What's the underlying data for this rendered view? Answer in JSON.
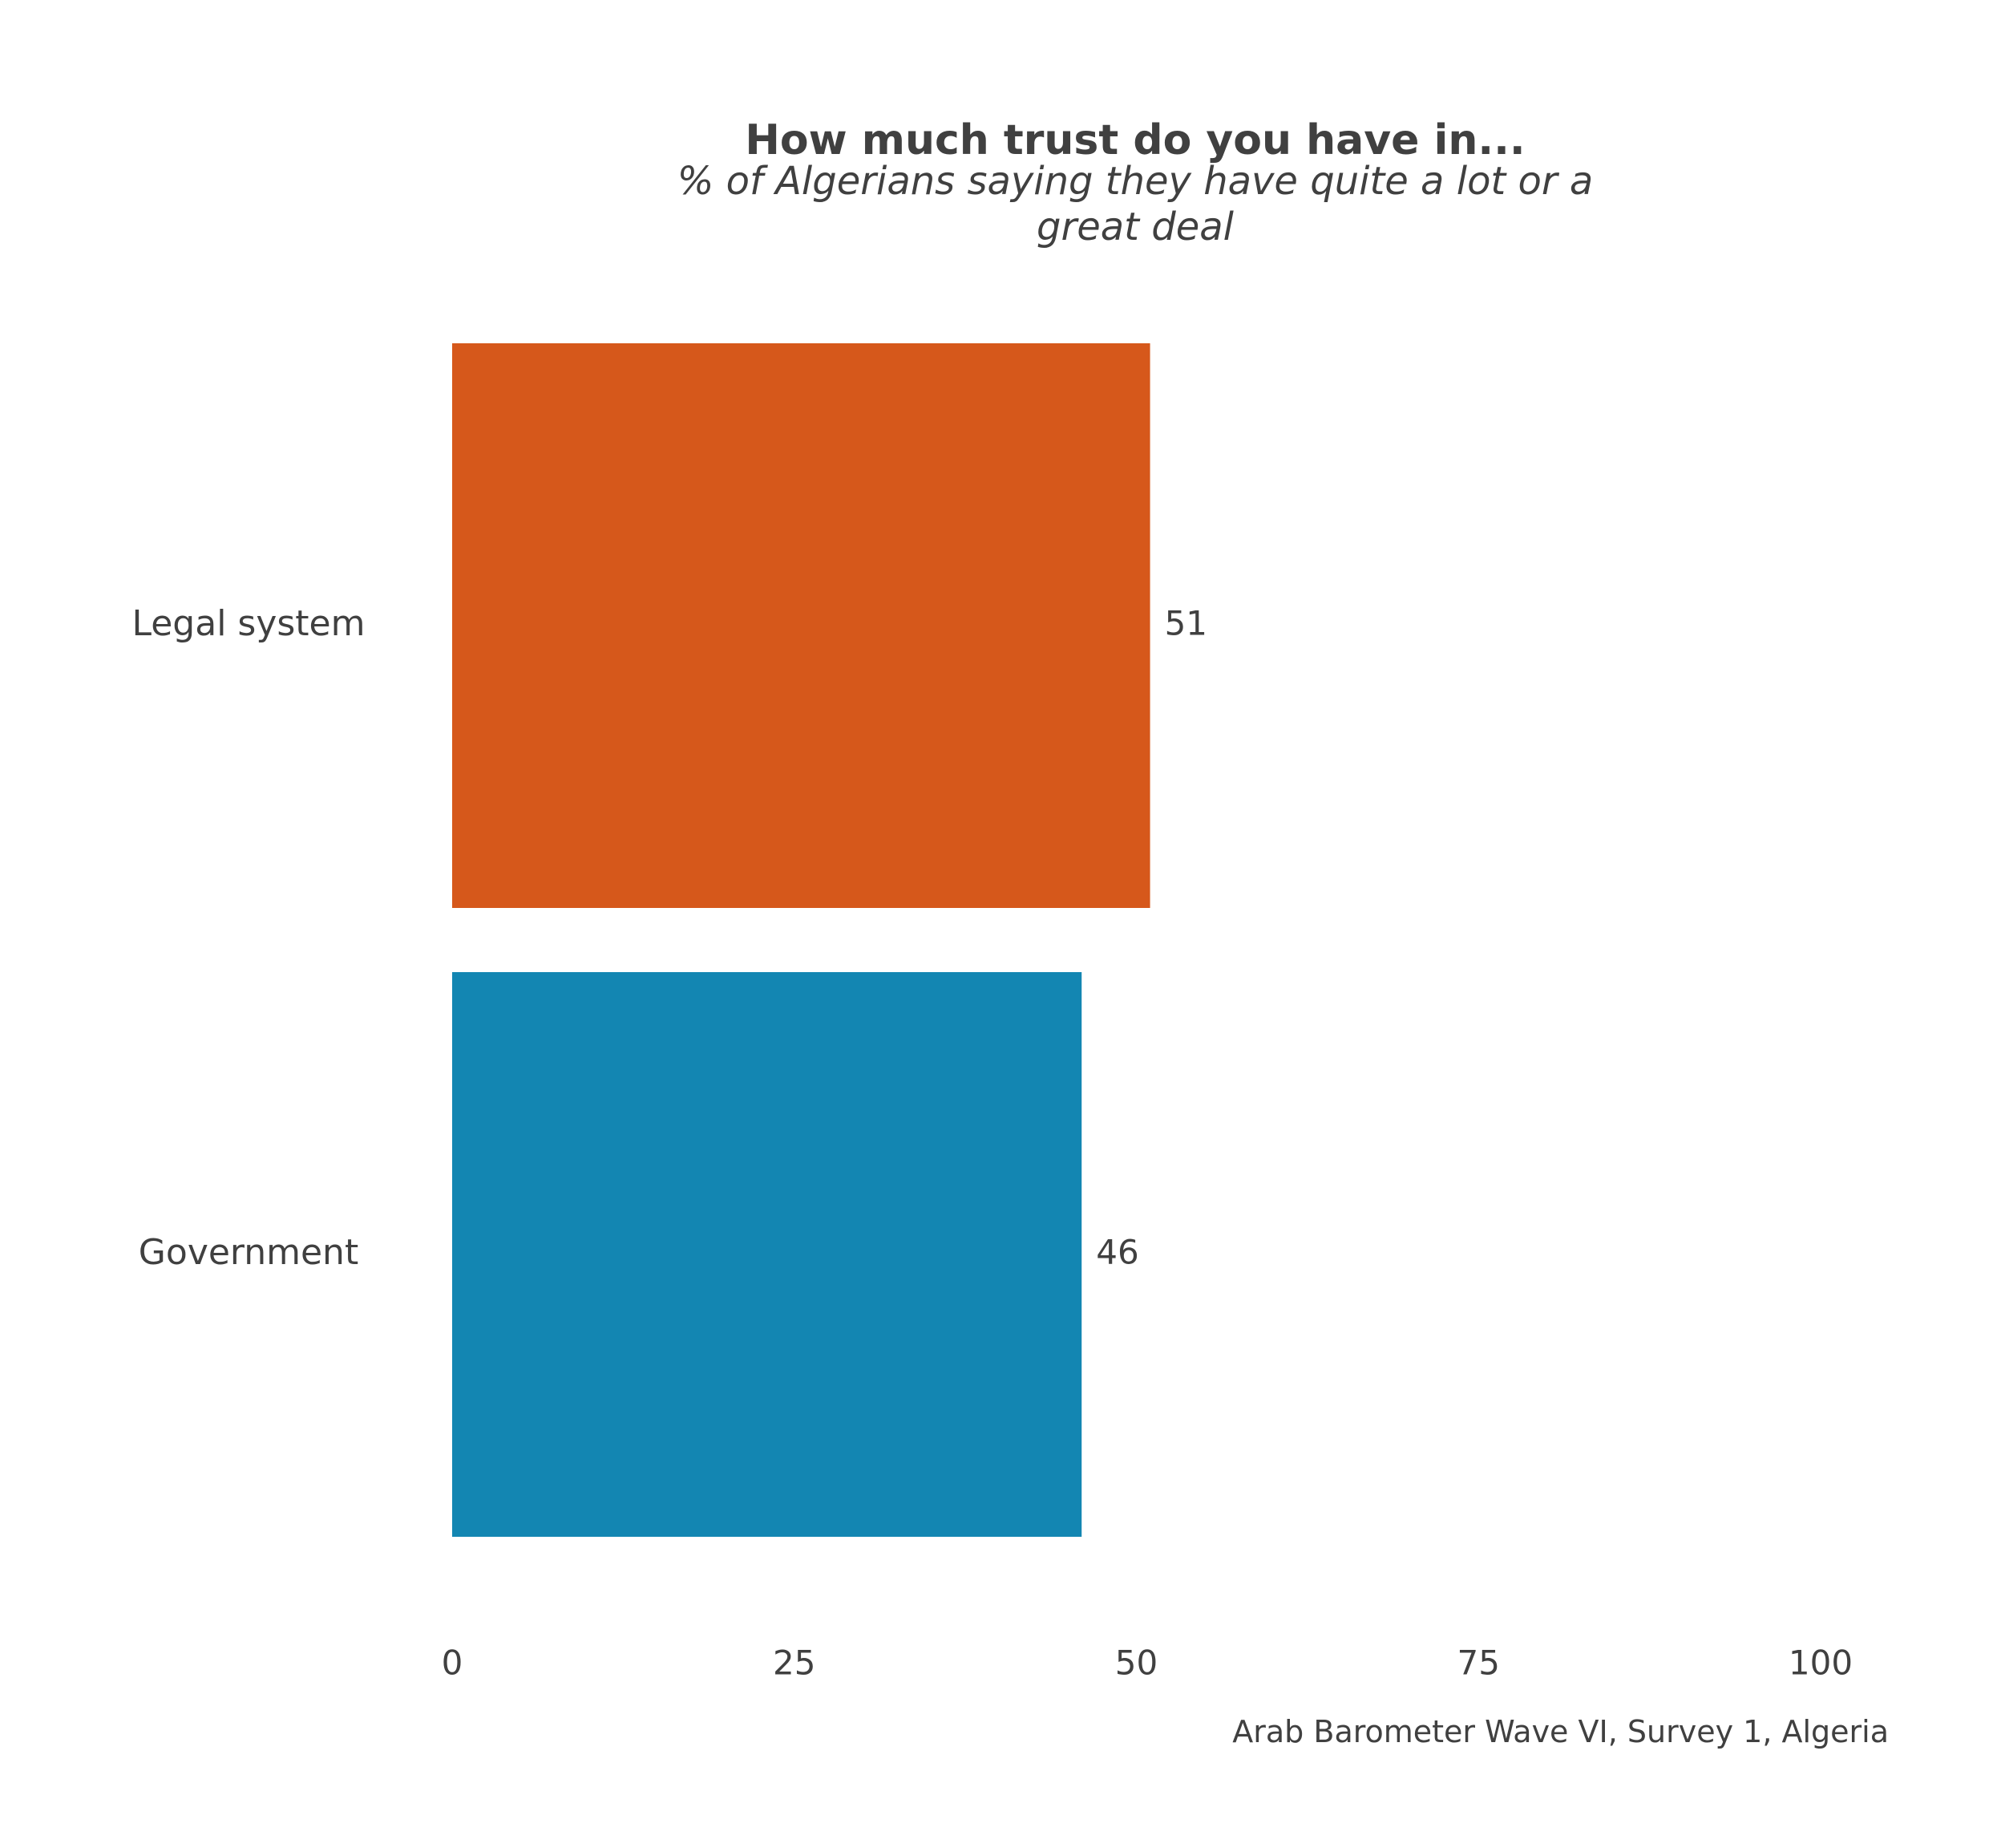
{
  "chart_data": {
    "type": "bar",
    "orientation": "horizontal",
    "title": "How much trust do you have in...",
    "subtitle_lines": [
      "% of Algerians saying they have quite a lot or a",
      "great deal"
    ],
    "categories": [
      "Legal system",
      "Government"
    ],
    "values": [
      51,
      46
    ],
    "value_labels": [
      "51",
      "46"
    ],
    "colors": [
      "#D6581B",
      "#1386B2"
    ],
    "xlim": [
      0,
      100
    ],
    "xticks": [
      0,
      25,
      50,
      75,
      100
    ],
    "xtick_labels": [
      "0",
      "25",
      "50",
      "75",
      "100"
    ],
    "grid": false,
    "legend": "none",
    "caption": "Arab Barometer Wave VI, Survey 1, Algeria"
  }
}
